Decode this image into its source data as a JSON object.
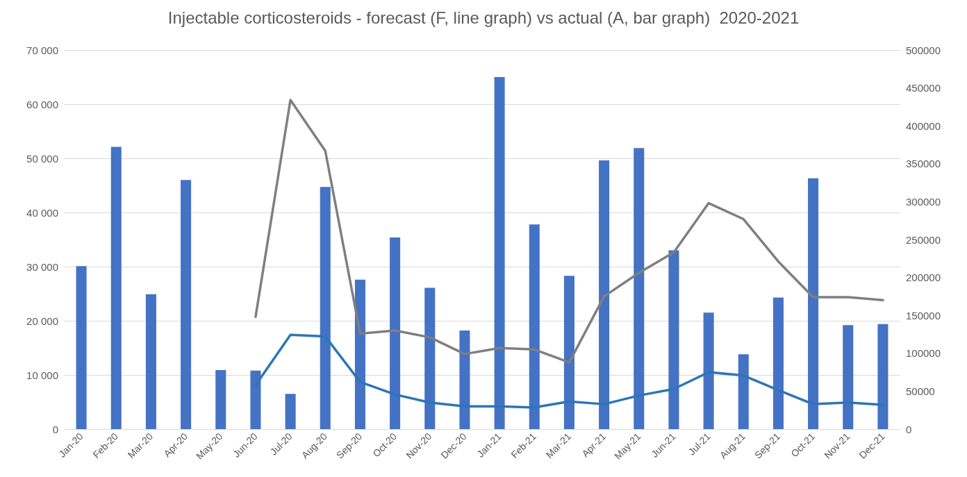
{
  "chart_data": {
    "type": "bar",
    "title": "Injectable corticosteroids - forecast (F, line graph) vs actual (A, bar graph)  2020-2021",
    "categories": [
      "Jan-20",
      "Feb-20",
      "Mar-20",
      "Apr-20",
      "May-20",
      "Jun-20",
      "Jul-20",
      "Aug-20",
      "Sep-20",
      "Oct-20",
      "Nov-20",
      "Dec-20",
      "Jan-21",
      "Feb-21",
      "Mar-21",
      "Apr-21",
      "May-21",
      "Jun-21",
      "Jul-21",
      "Aug-21",
      "Sep-21",
      "Oct-21",
      "Nov-21",
      "Dec-21"
    ],
    "series": [
      {
        "color": "#4472c4",
        "values": [
          30100,
          52100,
          24900,
          46000,
          10900,
          10800,
          6500,
          44700,
          27600,
          35400,
          26100,
          18200,
          65000,
          37800,
          28300,
          49600,
          51900,
          33000,
          21500,
          13800,
          24300,
          46300,
          19200,
          19400
        ]
      },
      {
        "type": "line",
        "color": "#2e75b6",
        "values": [
          null,
          null,
          null,
          null,
          null,
          8100,
          17400,
          17100,
          8700,
          6400,
          4900,
          4200,
          4200,
          4000,
          5100,
          4600,
          6200,
          7400,
          10500,
          9900,
          7200,
          4600,
          4900,
          4500
        ]
      },
      {
        "type": "line",
        "color": "#7f7f7f",
        "axis": "y2",
        "values": [
          null,
          null,
          null,
          null,
          null,
          148000,
          434000,
          367000,
          126000,
          130000,
          121000,
          99000,
          107000,
          105000,
          88000,
          175000,
          206000,
          233000,
          298000,
          277000,
          221000,
          174000,
          174000,
          170000
        ]
      }
    ],
    "ylim": [
      0,
      70000
    ],
    "yticks": [
      {
        "value": 0,
        "label": "0"
      },
      {
        "value": 10000,
        "label": "10 000"
      },
      {
        "value": 20000,
        "label": "20 000"
      },
      {
        "value": 30000,
        "label": "30 000"
      },
      {
        "value": 40000,
        "label": "40 000"
      },
      {
        "value": 50000,
        "label": "50 000"
      },
      {
        "value": 60000,
        "label": "60 000"
      },
      {
        "value": 70000,
        "label": "70 000"
      }
    ],
    "y2lim": [
      0,
      500000
    ],
    "y2ticks": [
      0,
      50000,
      100000,
      150000,
      200000,
      250000,
      300000,
      350000,
      400000,
      450000,
      500000
    ],
    "grid": "y",
    "marker": "none",
    "line_style": "solid"
  }
}
